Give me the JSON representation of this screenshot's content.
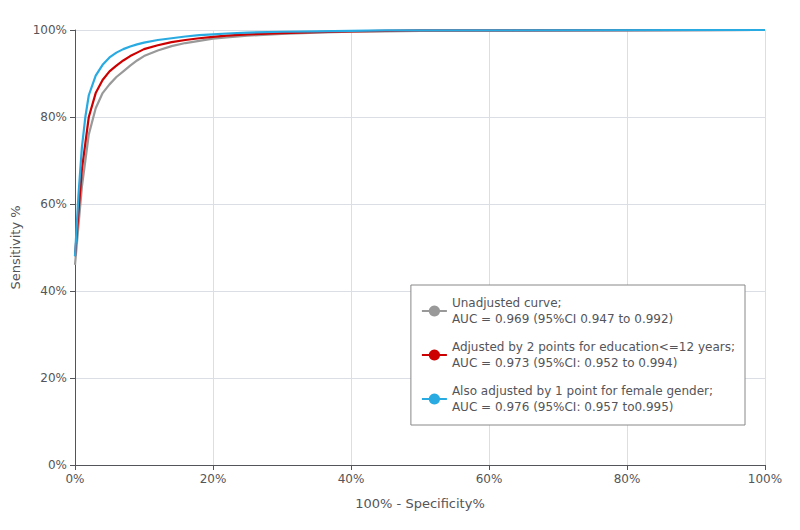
{
  "chart_data": {
    "type": "line",
    "xlabel": "100% - Specificity%",
    "ylabel": "Sensitivity %",
    "xlim": [
      0,
      1.0
    ],
    "ylim": [
      0,
      1.0
    ],
    "xticks": [
      {
        "value": 0,
        "label": "0%"
      },
      {
        "value": 0.2,
        "label": "20%"
      },
      {
        "value": 0.4,
        "label": "40%"
      },
      {
        "value": 0.6,
        "label": "60%"
      },
      {
        "value": 0.8,
        "label": "80%"
      },
      {
        "value": 1.0,
        "label": "100%"
      }
    ],
    "yticks": [
      {
        "value": 0,
        "label": "0%"
      },
      {
        "value": 0.2,
        "label": "20%"
      },
      {
        "value": 0.4,
        "label": "40%"
      },
      {
        "value": 0.6,
        "label": "60%"
      },
      {
        "value": 0.8,
        "label": "80%"
      },
      {
        "value": 1.0,
        "label": "100%"
      }
    ],
    "grid": true,
    "legend": "lower right",
    "x": [
      0.0,
      0.005,
      0.01,
      0.015,
      0.02,
      0.03,
      0.04,
      0.05,
      0.06,
      0.07,
      0.08,
      0.09,
      0.1,
      0.12,
      0.14,
      0.16,
      0.18,
      0.2,
      0.22,
      0.25,
      0.3,
      0.35,
      0.4,
      0.45,
      0.5,
      1.0
    ],
    "series": [
      {
        "name": "Unadjusted curve;\nAUC = 0.969 (95%CI 0.947 to 0.992)",
        "color": "#999999",
        "values": [
          0.46,
          0.55,
          0.64,
          0.7,
          0.76,
          0.82,
          0.855,
          0.875,
          0.892,
          0.905,
          0.918,
          0.93,
          0.94,
          0.953,
          0.963,
          0.97,
          0.975,
          0.98,
          0.983,
          0.987,
          0.991,
          0.994,
          0.996,
          0.997,
          0.998,
          1.0
        ]
      },
      {
        "name": "Adjusted by 2 points for education<=12 years;\nAUC = 0.973 (95%CI: 0.952 to 0.994)",
        "color": "#CC0000",
        "values": [
          0.48,
          0.58,
          0.68,
          0.74,
          0.8,
          0.855,
          0.885,
          0.905,
          0.918,
          0.93,
          0.94,
          0.948,
          0.956,
          0.965,
          0.972,
          0.977,
          0.981,
          0.984,
          0.987,
          0.99,
          0.993,
          0.995,
          0.997,
          0.998,
          0.999,
          1.0
        ]
      },
      {
        "name": "Also adjusted by 1 point for female gender;\nAUC = 0.976 (95%CI: 0.957 to0.995)",
        "color": "#29ABE2",
        "values": [
          0.48,
          0.62,
          0.73,
          0.8,
          0.85,
          0.895,
          0.92,
          0.937,
          0.948,
          0.956,
          0.962,
          0.967,
          0.971,
          0.977,
          0.981,
          0.985,
          0.988,
          0.99,
          0.992,
          0.994,
          0.996,
          0.997,
          0.998,
          0.999,
          0.999,
          1.0
        ]
      }
    ]
  }
}
